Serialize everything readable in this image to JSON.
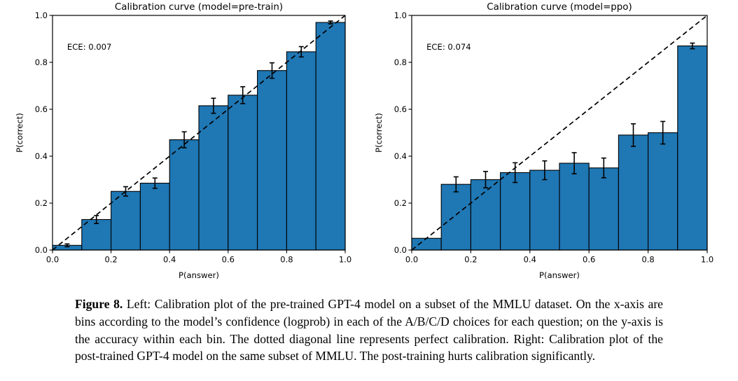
{
  "page": {
    "background": "#ffffff",
    "text_color": "#000000"
  },
  "chart_data": [
    {
      "type": "bar",
      "name": "pretrain-calibration",
      "title": "Calibration curve (model=pre-train)",
      "annotation": "ECE: 0.007",
      "xlabel": "P(answer)",
      "ylabel": "P(correct)",
      "xlim": [
        0.0,
        1.0
      ],
      "ylim": [
        0.0,
        1.0
      ],
      "xticks": [
        "0.0",
        "0.2",
        "0.4",
        "0.6",
        "0.8",
        "1.0"
      ],
      "yticks": [
        "0.0",
        "0.2",
        "0.4",
        "0.6",
        "0.8",
        "1.0"
      ],
      "bin_edges": [
        0.0,
        0.1,
        0.2,
        0.3,
        0.4,
        0.5,
        0.6,
        0.7,
        0.8,
        0.9,
        1.0
      ],
      "values": [
        0.02,
        0.13,
        0.25,
        0.285,
        0.47,
        0.615,
        0.66,
        0.765,
        0.845,
        0.97
      ],
      "errors": [
        0.006,
        0.017,
        0.02,
        0.022,
        0.034,
        0.032,
        0.036,
        0.033,
        0.022,
        0.006
      ],
      "diagonal": true,
      "grid": false,
      "bar_color": "#1f77b4",
      "bar_edge_color": "#000000",
      "diagonal_color": "#000000",
      "error_color": "#000000"
    },
    {
      "type": "bar",
      "name": "ppo-calibration",
      "title": "Calibration curve (model=ppo)",
      "annotation": "ECE: 0.074",
      "xlabel": "P(answer)",
      "ylabel": "P(correct)",
      "xlim": [
        0.0,
        1.0
      ],
      "ylim": [
        0.0,
        1.0
      ],
      "xticks": [
        "0.0",
        "0.2",
        "0.4",
        "0.6",
        "0.8",
        "1.0"
      ],
      "yticks": [
        "0.0",
        "0.2",
        "0.4",
        "0.6",
        "0.8",
        "1.0"
      ],
      "bin_edges": [
        0.0,
        0.1,
        0.2,
        0.3,
        0.4,
        0.5,
        0.6,
        0.7,
        0.8,
        0.9,
        1.0
      ],
      "values": [
        0.05,
        0.28,
        0.3,
        0.33,
        0.34,
        0.37,
        0.35,
        0.49,
        0.5,
        0.87
      ],
      "errors": [
        0,
        0.032,
        0.035,
        0.042,
        0.04,
        0.045,
        0.042,
        0.048,
        0.048,
        0.012
      ],
      "diagonal": true,
      "grid": false,
      "bar_color": "#1f77b4",
      "bar_edge_color": "#000000",
      "diagonal_color": "#000000",
      "error_color": "#000000"
    }
  ],
  "caption": {
    "label": "Figure 8.",
    "text": "Left: Calibration plot of the pre-trained GPT-4 model on a subset of the MMLU dataset. On the x-axis are bins according to the model’s confidence (logprob) in each of the A/B/C/D choices for each question; on the y-axis is the accuracy within each bin. The dotted diagonal line represents perfect calibration. Right: Calibration plot of the post-trained GPT-4 model on the same subset of MMLU. The post-training hurts calibration significantly."
  }
}
